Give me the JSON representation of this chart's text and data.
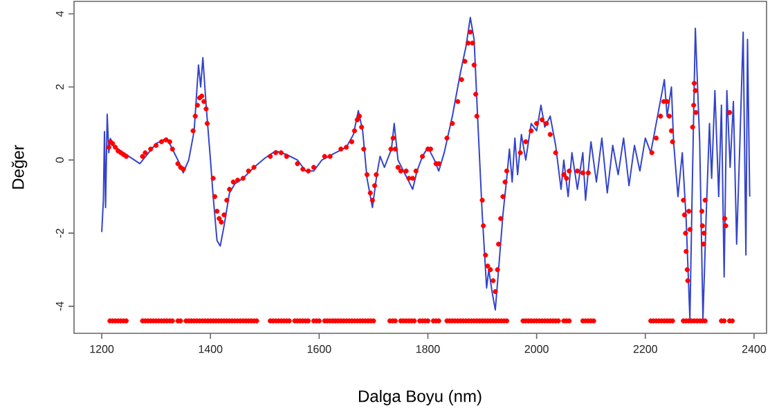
{
  "chart_data": {
    "type": "line",
    "xlabel": "Dalga Boyu (nm)",
    "ylabel": "Değer",
    "xlim": [
      1149,
      2423
    ],
    "ylim": [
      -4.74,
      4.34
    ],
    "xticks": [
      1200,
      1400,
      1600,
      1800,
      2000,
      2200,
      2400
    ],
    "yticks": [
      -4,
      -2,
      0,
      2,
      4
    ],
    "grid": false,
    "legend": false,
    "series": [
      {
        "color": "#3344cc",
        "marker": "none",
        "x": [
          1200,
          1203,
          1205,
          1207,
          1210,
          1213,
          1216,
          1220,
          1250,
          1270,
          1300,
          1320,
          1340,
          1350,
          1360,
          1370,
          1378,
          1382,
          1386,
          1392,
          1400,
          1405,
          1412,
          1418,
          1425,
          1435,
          1445,
          1460,
          1480,
          1500,
          1520,
          1540,
          1560,
          1575,
          1590,
          1605,
          1630,
          1650,
          1663,
          1672,
          1680,
          1688,
          1698,
          1706,
          1712,
          1720,
          1733,
          1738,
          1745,
          1755,
          1762,
          1772,
          1780,
          1790,
          1800,
          1812,
          1820,
          1830,
          1845,
          1860,
          1870,
          1878,
          1885,
          1892,
          1900,
          1908,
          1912,
          1918,
          1924,
          1930,
          1938,
          1945,
          1950,
          1955,
          1960,
          1965,
          1972,
          1980,
          1990,
          2000,
          2008,
          2015,
          2025,
          2035,
          2045,
          2050,
          2058,
          2065,
          2075,
          2085,
          2090,
          2100,
          2110,
          2120,
          2130,
          2140,
          2150,
          2160,
          2170,
          2180,
          2190,
          2200,
          2210,
          2225,
          2235,
          2240,
          2248,
          2252,
          2260,
          2268,
          2275,
          2282,
          2286,
          2292,
          2300,
          2306,
          2312,
          2318,
          2322,
          2328,
          2335,
          2340,
          2345,
          2350,
          2356,
          2362,
          2368,
          2374,
          2380,
          2385,
          2388,
          2392
        ],
        "values": [
          -1.97,
          -1.1,
          0.78,
          -1.3,
          1.25,
          0.2,
          0.59,
          0.4,
          0.1,
          -0.1,
          0.45,
          0.6,
          0.0,
          -0.35,
          0.0,
          0.8,
          2.6,
          2.0,
          2.8,
          1.5,
          0.0,
          -1.0,
          -2.2,
          -2.35,
          -1.8,
          -0.9,
          -0.65,
          -0.5,
          -0.2,
          0.05,
          0.25,
          0.15,
          0.0,
          -0.3,
          -0.3,
          0.0,
          0.2,
          0.35,
          0.7,
          1.35,
          0.8,
          -0.5,
          -1.3,
          -0.4,
          0.1,
          -0.2,
          0.3,
          1.0,
          0.0,
          -0.3,
          -0.5,
          -0.8,
          -0.3,
          0.1,
          0.35,
          0.0,
          -0.3,
          0.2,
          1.2,
          2.4,
          3.1,
          3.9,
          3.3,
          1.0,
          -1.5,
          -3.5,
          -3.0,
          -3.6,
          -4.1,
          -3.0,
          -1.5,
          -0.5,
          0.3,
          -0.6,
          0.6,
          -0.4,
          0.7,
          0.0,
          1.0,
          0.8,
          1.5,
          0.9,
          1.2,
          0.4,
          -0.8,
          0.0,
          -1.0,
          0.2,
          -0.8,
          0.2,
          -1.1,
          0.5,
          -0.6,
          0.6,
          -0.9,
          0.4,
          -0.4,
          0.6,
          -0.7,
          0.4,
          -0.3,
          0.6,
          0.2,
          1.4,
          2.2,
          1.2,
          2.0,
          0.5,
          -1.0,
          0.2,
          -1.6,
          -4.35,
          -1.0,
          3.6,
          0.5,
          -4.35,
          -1.5,
          1.0,
          -0.5,
          1.9,
          -1.0,
          1.5,
          -3.2,
          1.9,
          -0.2,
          1.6,
          -2.3,
          0.5,
          3.5,
          -2.6,
          3.3,
          -1.0
        ]
      },
      {
        "type": "scatter",
        "color": "#ff0000",
        "marker": "circle",
        "x": [
          1213,
          1216,
          1220,
          1225,
          1230,
          1235,
          1240,
          1245,
          1275,
          1280,
          1290,
          1300,
          1310,
          1318,
          1325,
          1330,
          1340,
          1345,
          1350,
          1368,
          1372,
          1376,
          1380,
          1384,
          1388,
          1392,
          1394,
          1405,
          1408,
          1412,
          1416,
          1420,
          1425,
          1430,
          1435,
          1442,
          1450,
          1460,
          1470,
          1480,
          1510,
          1520,
          1530,
          1540,
          1560,
          1570,
          1580,
          1590,
          1610,
          1620,
          1640,
          1650,
          1660,
          1665,
          1670,
          1674,
          1678,
          1682,
          1688,
          1694,
          1698,
          1702,
          1705,
          1732,
          1736,
          1740,
          1745,
          1750,
          1760,
          1765,
          1772,
          1778,
          1790,
          1800,
          1805,
          1815,
          1820,
          1835,
          1845,
          1855,
          1862,
          1868,
          1874,
          1878,
          1882,
          1885,
          1888,
          1890,
          1900,
          1902,
          1906,
          1910,
          1915,
          1920,
          1924,
          1928,
          1930,
          1934,
          1938,
          1942,
          1945,
          1970,
          1980,
          1990,
          2000,
          2010,
          2018,
          2025,
          2035,
          2050,
          2055,
          2060,
          2075,
          2085,
          2095,
          2212,
          2220,
          2228,
          2234,
          2240,
          2244,
          2248,
          2250,
          2270,
          2272,
          2274,
          2275,
          2277,
          2278,
          2280,
          2282,
          2287,
          2289,
          2290,
          2292,
          2293,
          2304,
          2305,
          2307,
          2308,
          2310,
          2346,
          2348,
          2355
        ],
        "values": [
          0.35,
          0.5,
          0.45,
          0.35,
          0.25,
          0.2,
          0.15,
          0.1,
          0.1,
          0.2,
          0.3,
          0.4,
          0.5,
          0.55,
          0.5,
          0.3,
          -0.1,
          -0.2,
          -0.25,
          0.8,
          1.2,
          1.5,
          1.7,
          1.75,
          1.6,
          1.4,
          1.0,
          -0.5,
          -1.0,
          -1.4,
          -1.6,
          -1.7,
          -1.5,
          -1.1,
          -0.8,
          -0.6,
          -0.55,
          -0.5,
          -0.3,
          -0.2,
          0.1,
          0.2,
          0.2,
          0.1,
          -0.1,
          -0.25,
          -0.3,
          -0.2,
          0.1,
          0.1,
          0.3,
          0.35,
          0.5,
          0.8,
          1.1,
          1.2,
          0.9,
          0.3,
          -0.4,
          -0.9,
          -1.1,
          -0.7,
          -0.4,
          0.3,
          0.6,
          0.3,
          -0.2,
          -0.3,
          -0.3,
          -0.5,
          -0.5,
          -0.3,
          0.1,
          0.3,
          0.3,
          -0.1,
          -0.1,
          0.6,
          1.0,
          1.6,
          2.2,
          2.7,
          3.2,
          3.5,
          3.2,
          2.6,
          1.8,
          1.2,
          -1.1,
          -1.8,
          -2.6,
          -2.9,
          -3.0,
          -3.3,
          -3.6,
          -3.0,
          -2.3,
          -1.6,
          -1.0,
          -0.6,
          -0.3,
          0.2,
          0.5,
          0.8,
          1.0,
          1.1,
          1.0,
          0.7,
          0.2,
          -0.4,
          -0.5,
          -0.3,
          -0.3,
          -0.35,
          -0.35,
          0.2,
          0.6,
          1.2,
          1.6,
          1.6,
          1.2,
          0.8,
          0.5,
          -1.1,
          -1.5,
          -2.0,
          -2.5,
          -3.0,
          -3.3,
          -1.4,
          -1.9,
          0.9,
          1.5,
          2.1,
          1.9,
          1.3,
          -1.4,
          -1.8,
          -2.3,
          -2.0,
          -1.1,
          -1.6,
          -1.8,
          1.3
        ]
      },
      {
        "type": "scatter",
        "color": "#ff0000",
        "marker": "circle",
        "x": [
          1215,
          1220,
          1225,
          1230,
          1235,
          1240,
          1245,
          1275,
          1280,
          1285,
          1290,
          1295,
          1300,
          1305,
          1310,
          1315,
          1320,
          1325,
          1330,
          1340,
          1345,
          1355,
          1360,
          1365,
          1370,
          1375,
          1380,
          1385,
          1390,
          1395,
          1400,
          1405,
          1410,
          1415,
          1420,
          1425,
          1430,
          1435,
          1440,
          1445,
          1450,
          1455,
          1460,
          1465,
          1470,
          1475,
          1480,
          1485,
          1510,
          1515,
          1520,
          1525,
          1530,
          1535,
          1540,
          1545,
          1555,
          1560,
          1565,
          1570,
          1575,
          1580,
          1590,
          1595,
          1600,
          1610,
          1615,
          1620,
          1625,
          1630,
          1635,
          1640,
          1645,
          1650,
          1655,
          1660,
          1665,
          1670,
          1675,
          1680,
          1685,
          1690,
          1695,
          1700,
          1730,
          1735,
          1740,
          1750,
          1755,
          1760,
          1765,
          1770,
          1775,
          1785,
          1790,
          1795,
          1800,
          1810,
          1815,
          1820,
          1835,
          1840,
          1845,
          1850,
          1855,
          1860,
          1865,
          1870,
          1875,
          1880,
          1885,
          1890,
          1895,
          1900,
          1905,
          1910,
          1915,
          1920,
          1925,
          1930,
          1935,
          1940,
          1945,
          1975,
          1980,
          1985,
          1990,
          1995,
          2000,
          2005,
          2010,
          2015,
          2020,
          2025,
          2030,
          2035,
          2040,
          2050,
          2055,
          2060,
          2085,
          2090,
          2095,
          2100,
          2105,
          2210,
          2215,
          2220,
          2225,
          2230,
          2235,
          2240,
          2245,
          2250,
          2270,
          2275,
          2280,
          2285,
          2290,
          2295,
          2300,
          2305,
          2310,
          2340,
          2345,
          2355,
          2360
        ],
        "values": [
          -4.4,
          -4.4,
          -4.4,
          -4.4,
          -4.4,
          -4.4,
          -4.4,
          -4.4,
          -4.4,
          -4.4,
          -4.4,
          -4.4,
          -4.4,
          -4.4,
          -4.4,
          -4.4,
          -4.4,
          -4.4,
          -4.4,
          -4.4,
          -4.4,
          -4.4,
          -4.4,
          -4.4,
          -4.4,
          -4.4,
          -4.4,
          -4.4,
          -4.4,
          -4.4,
          -4.4,
          -4.4,
          -4.4,
          -4.4,
          -4.4,
          -4.4,
          -4.4,
          -4.4,
          -4.4,
          -4.4,
          -4.4,
          -4.4,
          -4.4,
          -4.4,
          -4.4,
          -4.4,
          -4.4,
          -4.4,
          -4.4,
          -4.4,
          -4.4,
          -4.4,
          -4.4,
          -4.4,
          -4.4,
          -4.4,
          -4.4,
          -4.4,
          -4.4,
          -4.4,
          -4.4,
          -4.4,
          -4.4,
          -4.4,
          -4.4,
          -4.4,
          -4.4,
          -4.4,
          -4.4,
          -4.4,
          -4.4,
          -4.4,
          -4.4,
          -4.4,
          -4.4,
          -4.4,
          -4.4,
          -4.4,
          -4.4,
          -4.4,
          -4.4,
          -4.4,
          -4.4,
          -4.4,
          -4.4,
          -4.4,
          -4.4,
          -4.4,
          -4.4,
          -4.4,
          -4.4,
          -4.4,
          -4.4,
          -4.4,
          -4.4,
          -4.4,
          -4.4,
          -4.4,
          -4.4,
          -4.4,
          -4.4,
          -4.4,
          -4.4,
          -4.4,
          -4.4,
          -4.4,
          -4.4,
          -4.4,
          -4.4,
          -4.4,
          -4.4,
          -4.4,
          -4.4,
          -4.4,
          -4.4,
          -4.4,
          -4.4,
          -4.4,
          -4.4,
          -4.4,
          -4.4,
          -4.4,
          -4.4,
          -4.4,
          -4.4,
          -4.4,
          -4.4,
          -4.4,
          -4.4,
          -4.4,
          -4.4,
          -4.4,
          -4.4,
          -4.4,
          -4.4,
          -4.4,
          -4.4,
          -4.4,
          -4.4,
          -4.4,
          -4.4,
          -4.4,
          -4.4,
          -4.4,
          -4.4,
          -4.4,
          -4.4,
          -4.4,
          -4.4,
          -4.4,
          -4.4,
          -4.4,
          -4.4,
          -4.4,
          -4.4,
          -4.4,
          -4.4,
          -4.4,
          -4.4,
          -4.4,
          -4.4,
          -4.4,
          -4.4,
          -4.4,
          -4.4,
          -4.4,
          -4.4
        ]
      }
    ]
  }
}
